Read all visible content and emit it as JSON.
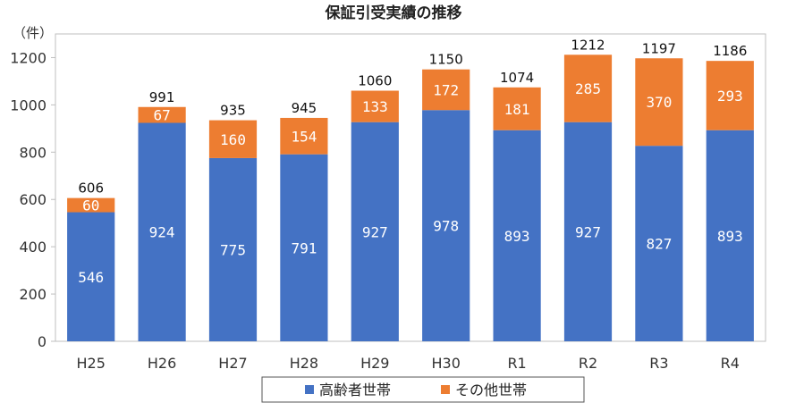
{
  "chart_data": {
    "type": "bar",
    "stacked": true,
    "title": "保証引受実績の推移",
    "ylabel": "（件）",
    "xlabel": "",
    "ylim": [
      0,
      1300
    ],
    "yticks": [
      0,
      200,
      400,
      600,
      800,
      1000,
      1200
    ],
    "grid": false,
    "legend_position": "bottom",
    "categories": [
      "H25",
      "H26",
      "H27",
      "H28",
      "H29",
      "H30",
      "R1",
      "R2",
      "R3",
      "R4"
    ],
    "series": [
      {
        "name": "高齢者世帯",
        "color": "#4472C4",
        "values": [
          546,
          924,
          775,
          791,
          927,
          978,
          893,
          927,
          827,
          893
        ]
      },
      {
        "name": "その他世帯",
        "color": "#ED7D31",
        "values": [
          60,
          67,
          160,
          154,
          133,
          172,
          181,
          285,
          370,
          293
        ]
      }
    ],
    "totals": [
      606,
      991,
      935,
      945,
      1060,
      1150,
      1074,
      1212,
      1197,
      1186
    ]
  }
}
